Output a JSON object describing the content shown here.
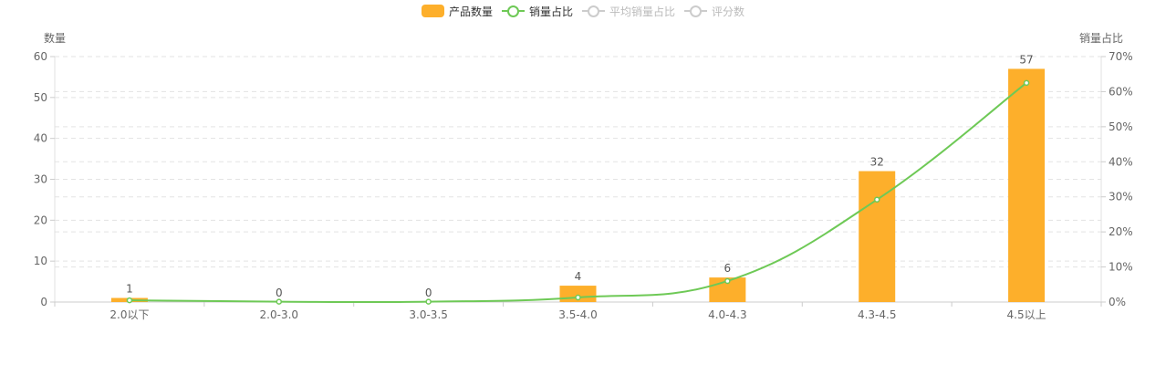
{
  "legend": [
    {
      "label": "产品数量",
      "kind": "bar",
      "color": "#fdaf2b",
      "active": true
    },
    {
      "label": "销量占比",
      "kind": "line",
      "color": "#6ec956",
      "active": true
    },
    {
      "label": "平均销量占比",
      "kind": "line",
      "color": "#cccccc",
      "active": false
    },
    {
      "label": "评分数",
      "kind": "line",
      "color": "#cccccc",
      "active": false
    }
  ],
  "chart_data": {
    "type": "bar",
    "categories": [
      "2.0以下",
      "2.0-3.0",
      "3.0-3.5",
      "3.5-4.0",
      "4.0-4.3",
      "4.3-4.5",
      "4.5以上"
    ],
    "series": [
      {
        "name": "产品数量",
        "type": "bar",
        "axis": "left",
        "values": [
          1,
          0,
          0,
          4,
          6,
          32,
          57
        ],
        "color": "#fdaf2b"
      },
      {
        "name": "销量占比",
        "type": "line",
        "axis": "right",
        "values": [
          0.5,
          0.1,
          0.1,
          1.3,
          6.0,
          29.2,
          62.5
        ],
        "color": "#6ec956"
      }
    ],
    "ylabel_left": "数量",
    "ylabel_right": "销量占比",
    "ylim_left": [
      0,
      60
    ],
    "ylim_right": [
      0,
      70
    ],
    "yticks_left": [
      "0",
      "10",
      "20",
      "30",
      "40",
      "50",
      "60"
    ],
    "yticks_right": [
      "0%",
      "10%",
      "20%",
      "30%",
      "40%",
      "50%",
      "60%",
      "70%"
    ],
    "grid": true,
    "legend_position": "top-center"
  }
}
